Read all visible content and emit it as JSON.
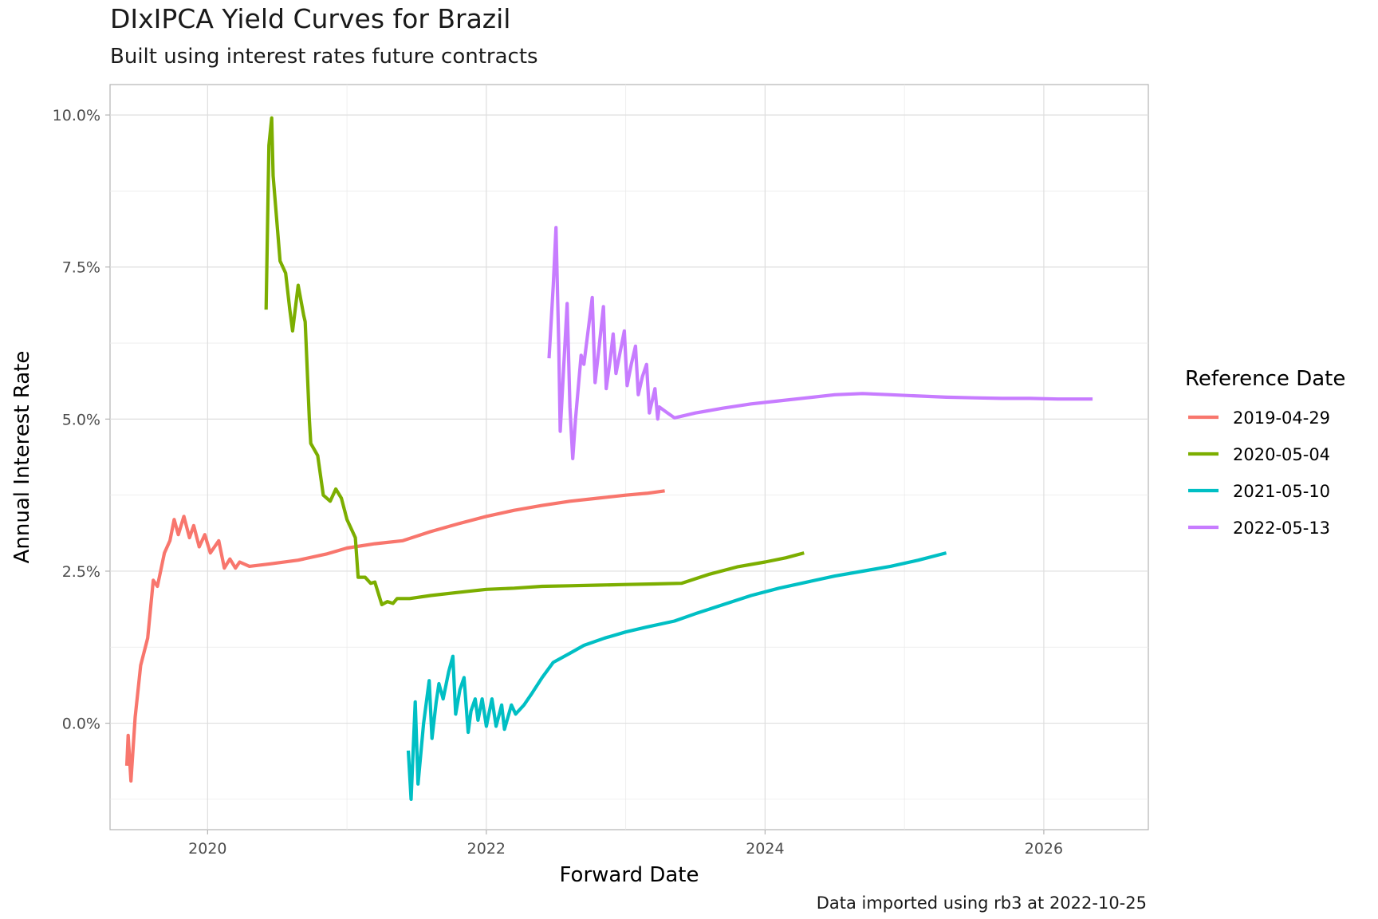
{
  "chart_data": {
    "type": "line",
    "title": "DIxIPCA Yield Curves for Brazil",
    "subtitle": "Built using interest rates future contracts",
    "caption": "Data imported using rb3 at 2022-10-25",
    "xlabel": "Forward Date",
    "ylabel": "Annual Interest Rate",
    "xlim": [
      2019.3,
      2026.75
    ],
    "ylim": [
      -1.75,
      10.5
    ],
    "x_ticks": [
      2020,
      2022,
      2024,
      2026
    ],
    "x_tick_labels": [
      "2020",
      "2022",
      "2024",
      "2026"
    ],
    "y_ticks": [
      0,
      2.5,
      5,
      7.5,
      10
    ],
    "y_tick_labels": [
      "0.0%",
      "2.5%",
      "5.0%",
      "7.5%",
      "10.0%"
    ],
    "grid": true,
    "legend": {
      "title": "Reference Date",
      "position": "right"
    },
    "series": [
      {
        "name": "2019-04-29",
        "color": "#F8766D",
        "points": [
          [
            2019.42,
            -0.7
          ],
          [
            2019.43,
            -0.2
          ],
          [
            2019.45,
            -0.95
          ],
          [
            2019.48,
            0.1
          ],
          [
            2019.52,
            0.95
          ],
          [
            2019.57,
            1.4
          ],
          [
            2019.61,
            2.35
          ],
          [
            2019.64,
            2.25
          ],
          [
            2019.69,
            2.8
          ],
          [
            2019.73,
            3.0
          ],
          [
            2019.76,
            3.35
          ],
          [
            2019.79,
            3.1
          ],
          [
            2019.83,
            3.4
          ],
          [
            2019.87,
            3.05
          ],
          [
            2019.9,
            3.25
          ],
          [
            2019.94,
            2.9
          ],
          [
            2019.98,
            3.1
          ],
          [
            2020.02,
            2.8
          ],
          [
            2020.08,
            3.0
          ],
          [
            2020.12,
            2.55
          ],
          [
            2020.16,
            2.7
          ],
          [
            2020.2,
            2.55
          ],
          [
            2020.23,
            2.65
          ],
          [
            2020.3,
            2.58
          ],
          [
            2020.45,
            2.62
          ],
          [
            2020.65,
            2.68
          ],
          [
            2020.85,
            2.78
          ],
          [
            2021.0,
            2.88
          ],
          [
            2021.2,
            2.95
          ],
          [
            2021.4,
            3.0
          ],
          [
            2021.6,
            3.15
          ],
          [
            2021.8,
            3.28
          ],
          [
            2022.0,
            3.4
          ],
          [
            2022.2,
            3.5
          ],
          [
            2022.4,
            3.58
          ],
          [
            2022.6,
            3.65
          ],
          [
            2022.8,
            3.7
          ],
          [
            2023.0,
            3.75
          ],
          [
            2023.15,
            3.78
          ],
          [
            2023.28,
            3.82
          ]
        ]
      },
      {
        "name": "2020-05-04",
        "color": "#7CAE00",
        "points": [
          [
            2020.42,
            6.8
          ],
          [
            2020.44,
            9.5
          ],
          [
            2020.46,
            9.95
          ],
          [
            2020.47,
            9.0
          ],
          [
            2020.52,
            7.6
          ],
          [
            2020.56,
            7.4
          ],
          [
            2020.59,
            6.8
          ],
          [
            2020.61,
            6.45
          ],
          [
            2020.65,
            7.2
          ],
          [
            2020.69,
            6.7
          ],
          [
            2020.7,
            6.6
          ],
          [
            2020.73,
            5.0
          ],
          [
            2020.74,
            4.6
          ],
          [
            2020.79,
            4.4
          ],
          [
            2020.83,
            3.75
          ],
          [
            2020.88,
            3.65
          ],
          [
            2020.92,
            3.85
          ],
          [
            2020.96,
            3.7
          ],
          [
            2021.0,
            3.35
          ],
          [
            2021.04,
            3.15
          ],
          [
            2021.06,
            3.05
          ],
          [
            2021.08,
            2.4
          ],
          [
            2021.13,
            2.4
          ],
          [
            2021.17,
            2.3
          ],
          [
            2021.2,
            2.32
          ],
          [
            2021.25,
            1.95
          ],
          [
            2021.29,
            2.0
          ],
          [
            2021.33,
            1.97
          ],
          [
            2021.36,
            2.05
          ],
          [
            2021.45,
            2.05
          ],
          [
            2021.6,
            2.1
          ],
          [
            2021.8,
            2.15
          ],
          [
            2022.0,
            2.2
          ],
          [
            2022.2,
            2.22
          ],
          [
            2022.4,
            2.25
          ],
          [
            2022.6,
            2.26
          ],
          [
            2022.8,
            2.27
          ],
          [
            2023.0,
            2.28
          ],
          [
            2023.2,
            2.29
          ],
          [
            2023.4,
            2.3
          ],
          [
            2023.6,
            2.45
          ],
          [
            2023.8,
            2.57
          ],
          [
            2024.0,
            2.65
          ],
          [
            2024.15,
            2.72
          ],
          [
            2024.28,
            2.8
          ]
        ]
      },
      {
        "name": "2021-05-10",
        "color": "#00BFC4",
        "points": [
          [
            2021.44,
            -0.45
          ],
          [
            2021.46,
            -1.25
          ],
          [
            2021.49,
            0.35
          ],
          [
            2021.51,
            -1.0
          ],
          [
            2021.55,
            0.0
          ],
          [
            2021.59,
            0.7
          ],
          [
            2021.61,
            -0.25
          ],
          [
            2021.64,
            0.35
          ],
          [
            2021.66,
            0.65
          ],
          [
            2021.69,
            0.4
          ],
          [
            2021.73,
            0.85
          ],
          [
            2021.76,
            1.1
          ],
          [
            2021.78,
            0.15
          ],
          [
            2021.81,
            0.55
          ],
          [
            2021.84,
            0.75
          ],
          [
            2021.87,
            -0.15
          ],
          [
            2021.89,
            0.2
          ],
          [
            2021.92,
            0.4
          ],
          [
            2021.94,
            0.05
          ],
          [
            2021.97,
            0.4
          ],
          [
            2022.0,
            -0.05
          ],
          [
            2022.04,
            0.4
          ],
          [
            2022.07,
            -0.05
          ],
          [
            2022.11,
            0.3
          ],
          [
            2022.13,
            -0.1
          ],
          [
            2022.18,
            0.3
          ],
          [
            2022.21,
            0.15
          ],
          [
            2022.27,
            0.3
          ],
          [
            2022.33,
            0.5
          ],
          [
            2022.4,
            0.75
          ],
          [
            2022.48,
            1.0
          ],
          [
            2022.6,
            1.15
          ],
          [
            2022.7,
            1.28
          ],
          [
            2022.85,
            1.4
          ],
          [
            2023.0,
            1.5
          ],
          [
            2023.15,
            1.58
          ],
          [
            2023.35,
            1.68
          ],
          [
            2023.5,
            1.8
          ],
          [
            2023.7,
            1.95
          ],
          [
            2023.9,
            2.1
          ],
          [
            2024.1,
            2.22
          ],
          [
            2024.3,
            2.32
          ],
          [
            2024.5,
            2.42
          ],
          [
            2024.7,
            2.5
          ],
          [
            2024.9,
            2.58
          ],
          [
            2025.1,
            2.68
          ],
          [
            2025.3,
            2.8
          ]
        ]
      },
      {
        "name": "2022-05-13",
        "color": "#C77CFF",
        "points": [
          [
            2022.45,
            6.0
          ],
          [
            2022.48,
            7.2
          ],
          [
            2022.5,
            8.15
          ],
          [
            2022.52,
            6.2
          ],
          [
            2022.53,
            4.8
          ],
          [
            2022.58,
            6.9
          ],
          [
            2022.6,
            5.2
          ],
          [
            2022.62,
            4.35
          ],
          [
            2022.64,
            5.0
          ],
          [
            2022.68,
            6.05
          ],
          [
            2022.7,
            5.9
          ],
          [
            2022.76,
            7.0
          ],
          [
            2022.78,
            5.6
          ],
          [
            2022.81,
            6.2
          ],
          [
            2022.84,
            6.85
          ],
          [
            2022.86,
            5.5
          ],
          [
            2022.89,
            6.0
          ],
          [
            2022.91,
            6.4
          ],
          [
            2022.93,
            5.75
          ],
          [
            2022.96,
            6.1
          ],
          [
            2022.99,
            6.45
          ],
          [
            2023.01,
            5.55
          ],
          [
            2023.04,
            5.9
          ],
          [
            2023.07,
            6.2
          ],
          [
            2023.09,
            5.4
          ],
          [
            2023.12,
            5.7
          ],
          [
            2023.15,
            5.9
          ],
          [
            2023.17,
            5.1
          ],
          [
            2023.21,
            5.5
          ],
          [
            2023.23,
            5.0
          ],
          [
            2023.24,
            5.2
          ],
          [
            2023.3,
            5.1
          ],
          [
            2023.35,
            5.02
          ],
          [
            2023.5,
            5.1
          ],
          [
            2023.7,
            5.18
          ],
          [
            2023.9,
            5.25
          ],
          [
            2024.1,
            5.3
          ],
          [
            2024.3,
            5.35
          ],
          [
            2024.5,
            5.4
          ],
          [
            2024.7,
            5.42
          ],
          [
            2024.9,
            5.4
          ],
          [
            2025.1,
            5.38
          ],
          [
            2025.3,
            5.36
          ],
          [
            2025.5,
            5.35
          ],
          [
            2025.7,
            5.34
          ],
          [
            2025.9,
            5.34
          ],
          [
            2026.1,
            5.33
          ],
          [
            2026.35,
            5.33
          ]
        ]
      }
    ]
  }
}
